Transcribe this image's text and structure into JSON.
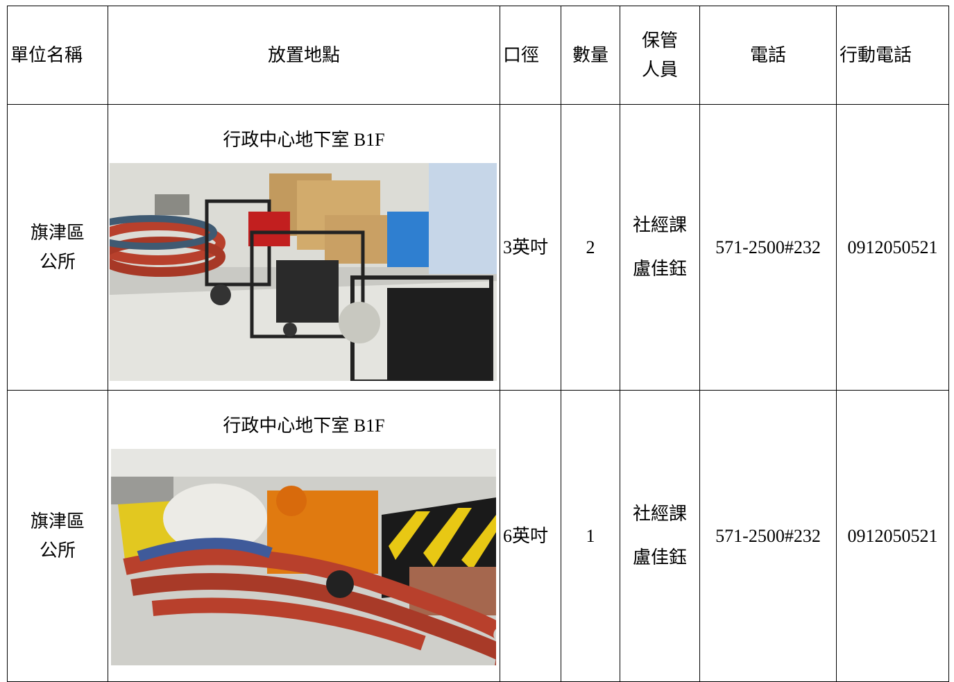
{
  "table": {
    "header": [
      "單位名稱",
      "放置地點",
      "口徑",
      "數量",
      [
        "保管",
        "人員"
      ],
      "電話",
      "行動電話"
    ],
    "rows": [
      {
        "unit": [
          "旗津區",
          "公所"
        ],
        "location": "行政中心地下室 B1F",
        "caliber": "3英吋",
        "quantity": "2",
        "custodian": [
          "社經課",
          "盧佳鈺"
        ],
        "phone": "571-2500#232",
        "mobile": "0912050521"
      },
      {
        "unit": [
          "旗津區",
          "公所"
        ],
        "location": "行政中心地下室 B1F",
        "caliber": "6英吋",
        "quantity": "1",
        "custodian": [
          "社經課",
          "盧佳鈺"
        ],
        "phone": "571-2500#232",
        "mobile": "0912050521"
      }
    ]
  }
}
